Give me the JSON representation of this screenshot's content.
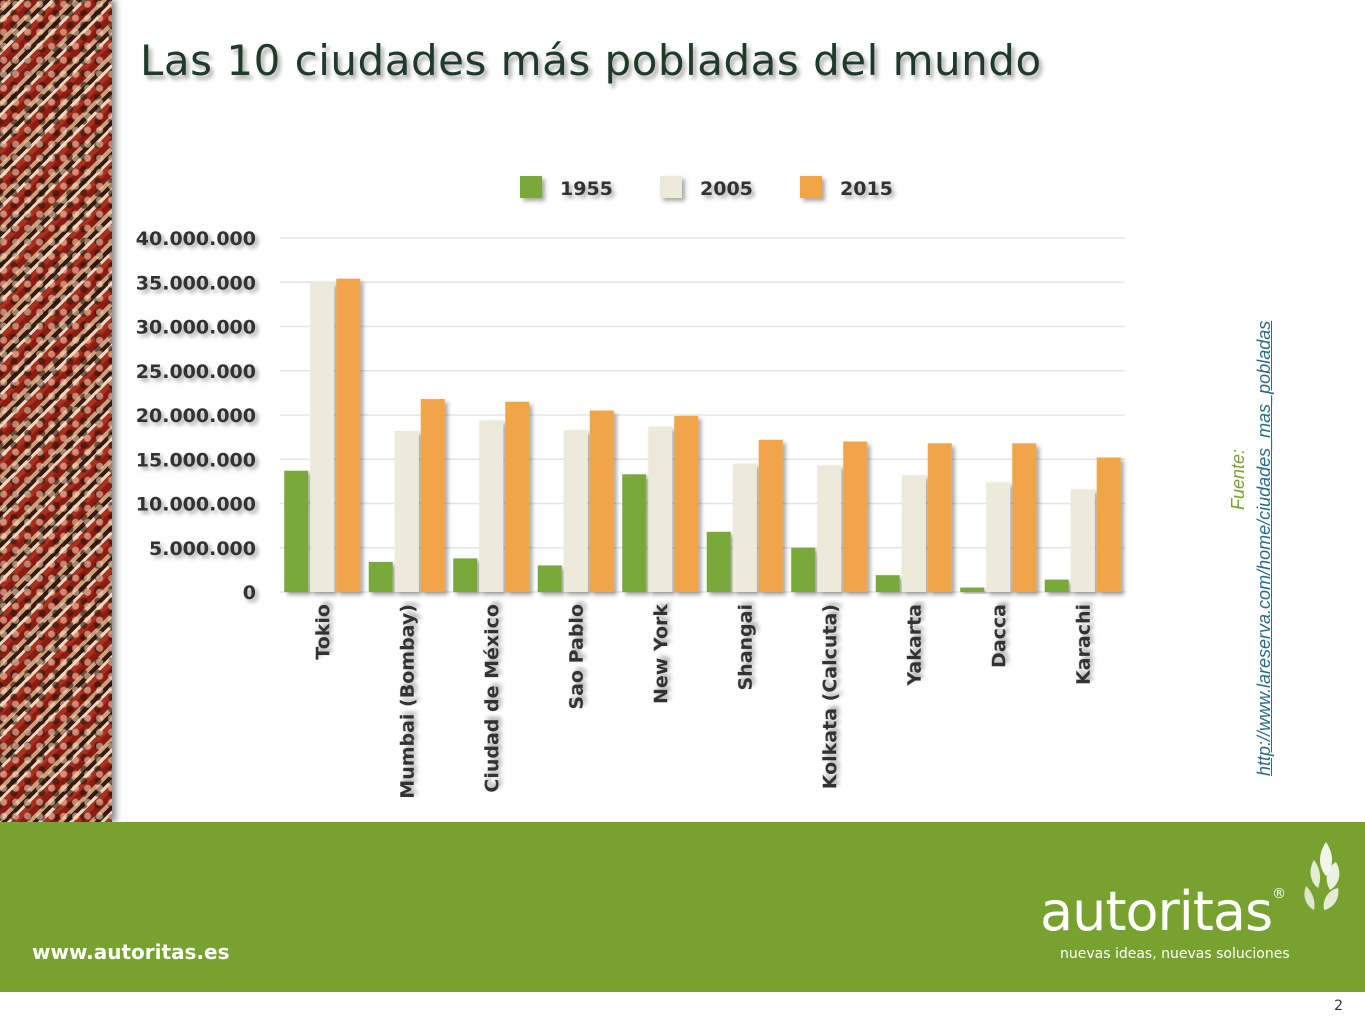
{
  "slide": {
    "title": "Las 10 ciudades más pobladas del mundo",
    "page_number": "2"
  },
  "source": {
    "label": "Fuente:",
    "url": "http://www.lareserva.com/home/ciudades_mas_pobladas"
  },
  "footer": {
    "website": "www.autoritas.es",
    "brand": "autoritas",
    "registered": "®",
    "tagline": "nuevas ideas, nuevas soluciones",
    "color": "#78a22f"
  },
  "chart_data": {
    "type": "bar",
    "categories": [
      "Tokio",
      "Mumbai (Bombay)",
      "Ciudad de México",
      "Sao Pablo",
      "New York",
      "Shangai",
      "Kolkata (Calcuta)",
      "Yakarta",
      "Dacca",
      "Karachi"
    ],
    "series": [
      {
        "name": "1955",
        "color": "#7aa83a",
        "values": [
          13700000,
          3400000,
          3800000,
          3000000,
          13300000,
          6800000,
          5000000,
          1900000,
          500000,
          1400000
        ]
      },
      {
        "name": "2005",
        "color": "#eeeadb",
        "values": [
          35000000,
          18200000,
          19400000,
          18300000,
          18700000,
          14500000,
          14300000,
          13200000,
          12400000,
          11600000
        ]
      },
      {
        "name": "2015",
        "color": "#f0a548",
        "values": [
          35400000,
          21800000,
          21500000,
          20500000,
          19900000,
          17200000,
          17000000,
          16800000,
          16800000,
          15200000
        ]
      }
    ],
    "yticks": [
      "0",
      "5.000.000",
      "10.000.000",
      "15.000.000",
      "20.000.000",
      "25.000.000",
      "30.000.000",
      "35.000.000",
      "40.000.000"
    ],
    "ylim": [
      0,
      40000000
    ],
    "ytick_step": 5000000,
    "grid": true,
    "legend_position": "top-center"
  }
}
